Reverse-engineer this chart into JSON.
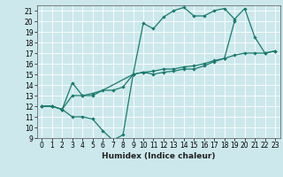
{
  "xlabel": "Humidex (Indice chaleur)",
  "background_color": "#cce8ec",
  "grid_color": "#ffffff",
  "line_color": "#1a7a6e",
  "xlim": [
    -0.5,
    23.5
  ],
  "ylim": [
    9,
    21.5
  ],
  "yticks": [
    9,
    10,
    11,
    12,
    13,
    14,
    15,
    16,
    17,
    18,
    19,
    20,
    21
  ],
  "xticks": [
    0,
    1,
    2,
    3,
    4,
    5,
    6,
    7,
    8,
    9,
    10,
    11,
    12,
    13,
    14,
    15,
    16,
    17,
    18,
    19,
    20,
    21,
    22,
    23
  ],
  "line1_x": [
    0,
    1,
    2,
    3,
    4,
    5,
    6,
    7,
    8,
    9,
    10,
    11,
    12,
    13,
    14,
    15,
    16,
    17,
    18,
    19
  ],
  "line1_y": [
    12.0,
    12.0,
    11.7,
    11.0,
    11.0,
    10.8,
    9.7,
    8.8,
    9.3,
    15.0,
    15.2,
    15.0,
    15.2,
    15.3,
    15.5,
    15.5,
    15.8,
    16.2,
    16.5,
    20.0
  ],
  "line2_x": [
    0,
    1,
    2,
    3,
    4,
    5,
    9,
    10,
    11,
    12,
    13,
    14,
    15,
    16,
    17,
    18,
    19,
    20,
    21,
    22,
    23
  ],
  "line2_y": [
    12.0,
    12.0,
    11.7,
    14.2,
    13.0,
    13.0,
    15.0,
    19.8,
    19.3,
    20.4,
    21.0,
    21.3,
    20.5,
    20.5,
    21.0,
    21.2,
    20.2,
    21.2,
    18.5,
    17.0,
    17.2
  ],
  "line3_x": [
    0,
    1,
    2,
    3,
    4,
    5,
    6,
    7,
    8,
    9,
    10,
    11,
    12,
    13,
    14,
    15,
    16,
    17,
    18,
    19,
    20,
    21,
    22,
    23
  ],
  "line3_y": [
    12.0,
    12.0,
    11.7,
    13.0,
    13.0,
    13.2,
    13.5,
    13.5,
    13.8,
    15.0,
    15.2,
    15.3,
    15.5,
    15.5,
    15.7,
    15.8,
    16.0,
    16.3,
    16.5,
    16.8,
    17.0,
    17.0,
    17.0,
    17.2
  ],
  "tickfontsize": 5.5,
  "xlabel_fontsize": 6.5
}
